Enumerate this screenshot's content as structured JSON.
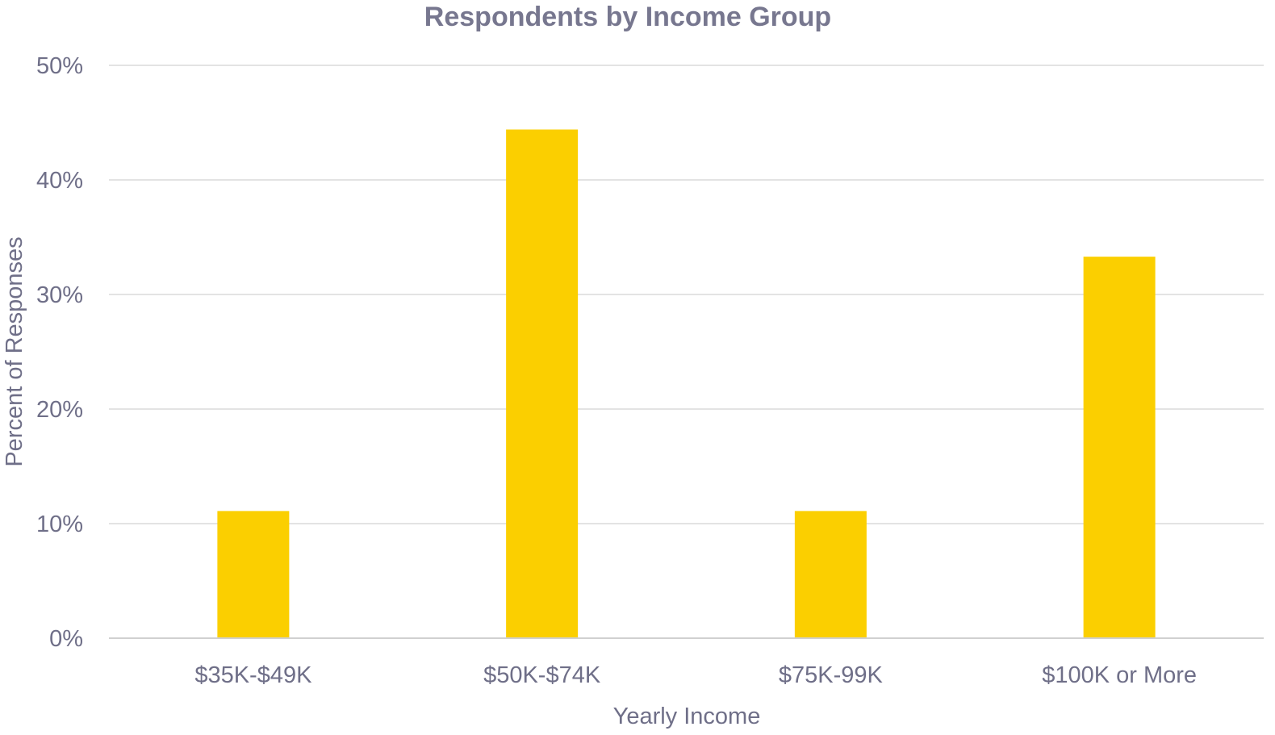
{
  "colors": {
    "bar": "#FBCF00",
    "text": "#6F6F88",
    "title": "#77778F",
    "grid": "#DADADA",
    "axis": "#D0D0D0"
  },
  "chart_data": {
    "type": "bar",
    "title": "Respondents by Income Group",
    "xlabel": "Yearly Income",
    "ylabel": "Percent of Responses",
    "categories": [
      "$35K-$49K",
      "$50K-$74K",
      "$75K-99K",
      "$100K or More"
    ],
    "values": [
      11.1,
      44.4,
      11.1,
      33.3
    ],
    "ylim": [
      0,
      50
    ],
    "yticks": [
      0,
      10,
      20,
      30,
      40,
      50
    ],
    "ytick_labels": [
      "0%",
      "10%",
      "20%",
      "30%",
      "40%",
      "50%"
    ],
    "grid": true,
    "legend": "none"
  }
}
